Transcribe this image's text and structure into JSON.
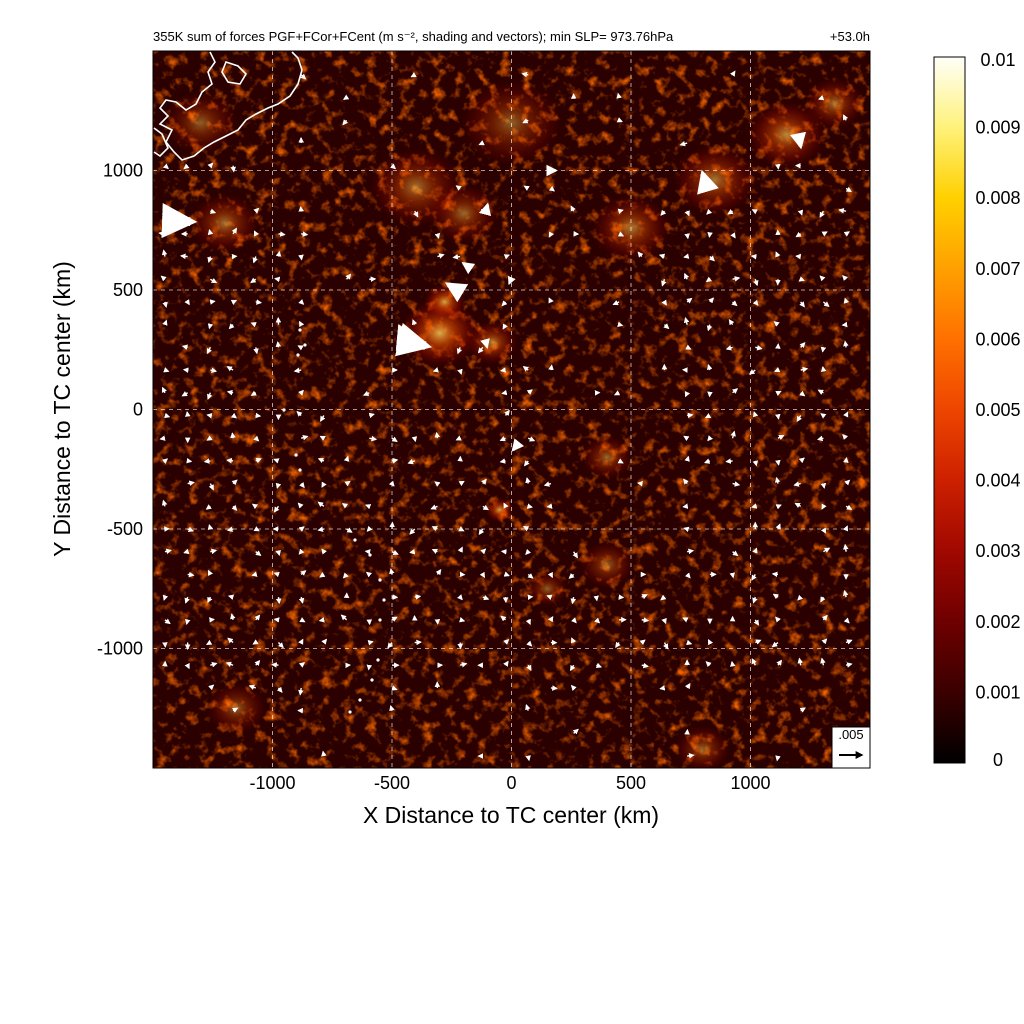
{
  "chart_data": {
    "type": "heatmap",
    "title": "355K sum of forces PGF+FCor+FCent (m s⁻², shading and vectors); min SLP= 973.76hPa",
    "forecast_time": "+53.0h",
    "xlabel": "X Distance to TC center (km)",
    "ylabel": "Y Distance to TC center (km)",
    "xlim": [
      -1500,
      1500
    ],
    "ylim": [
      -1500,
      1500
    ],
    "xticks": [
      -1000,
      -500,
      0,
      500,
      1000
    ],
    "yticks": [
      -1000,
      -500,
      0,
      500,
      1000
    ],
    "grid": true,
    "colorbar": {
      "range": [
        0,
        0.01
      ],
      "ticks": [
        "0",
        "0.001",
        "0.002",
        "0.003",
        "0.004",
        "0.005",
        "0.006",
        "0.007",
        "0.008",
        "0.009",
        "0.01"
      ],
      "colors": [
        "#000000",
        "#3a0000",
        "#6e0000",
        "#a00800",
        "#cc2000",
        "#ee4500",
        "#ff7000",
        "#ffa000",
        "#ffd000",
        "#fff27a",
        "#fffff8"
      ]
    },
    "reference_vector": {
      "label": ".005",
      "value": 0.005
    },
    "hotspots": [
      {
        "x": -300,
        "y": 320,
        "r": 170,
        "v": 0.0085
      },
      {
        "x": -280,
        "y": 450,
        "r": 90,
        "v": 0.007
      },
      {
        "x": -80,
        "y": 280,
        "r": 110,
        "v": 0.005
      },
      {
        "x": -50,
        "y": -420,
        "r": 60,
        "v": 0.007
      },
      {
        "x": -400,
        "y": 930,
        "r": 200,
        "v": 0.004
      },
      {
        "x": -200,
        "y": 820,
        "r": 150,
        "v": 0.0035
      },
      {
        "x": 500,
        "y": 760,
        "r": 170,
        "v": 0.0045
      },
      {
        "x": 850,
        "y": 960,
        "r": 180,
        "v": 0.0045
      },
      {
        "x": 1150,
        "y": 1150,
        "r": 170,
        "v": 0.0055
      },
      {
        "x": 1350,
        "y": 1280,
        "r": 130,
        "v": 0.004
      },
      {
        "x": 400,
        "y": -200,
        "r": 110,
        "v": 0.0035
      },
      {
        "x": 400,
        "y": -650,
        "r": 120,
        "v": 0.003
      },
      {
        "x": 150,
        "y": -750,
        "r": 90,
        "v": 0.003
      },
      {
        "x": -1200,
        "y": 780,
        "r": 150,
        "v": 0.004
      },
      {
        "x": -1300,
        "y": 1200,
        "r": 160,
        "v": 0.003
      },
      {
        "x": 0,
        "y": 1200,
        "r": 220,
        "v": 0.003
      },
      {
        "x": -1150,
        "y": -1250,
        "r": 130,
        "v": 0.003
      },
      {
        "x": 800,
        "y": -1420,
        "r": 120,
        "v": 0.003
      }
    ],
    "large_vectors": [
      {
        "x": -1450,
        "y": 790,
        "u": 0.0055,
        "v": -0.0002
      },
      {
        "x": -460,
        "y": 290,
        "u": 0.0052,
        "v": -0.0012
      },
      {
        "x": -470,
        "y": 300,
        "u": 0.0042,
        "v": -0.0004
      },
      {
        "x": -210,
        "y": 490,
        "u": -0.0028,
        "v": 0.0017
      },
      {
        "x": -170,
        "y": 590,
        "u": -0.0016,
        "v": 0.0011
      },
      {
        "x": 820,
        "y": 920,
        "u": -0.001,
        "v": 0.0034
      },
      {
        "x": 30,
        "y": -140,
        "u": -0.0012,
        "v": -0.0015
      },
      {
        "x": 1200,
        "y": 1150,
        "u": 0.0005,
        "v": -0.0025
      },
      {
        "x": 150,
        "y": 1000,
        "u": 0.0018,
        "v": 0.0
      },
      {
        "x": -110,
        "y": 820,
        "u": 0.0005,
        "v": 0.0019
      },
      {
        "x": -110,
        "y": 290,
        "u": 0.0004,
        "v": -0.0015
      },
      {
        "x": 0,
        "y": 550,
        "u": -0.0005,
        "v": -0.0012
      }
    ]
  }
}
